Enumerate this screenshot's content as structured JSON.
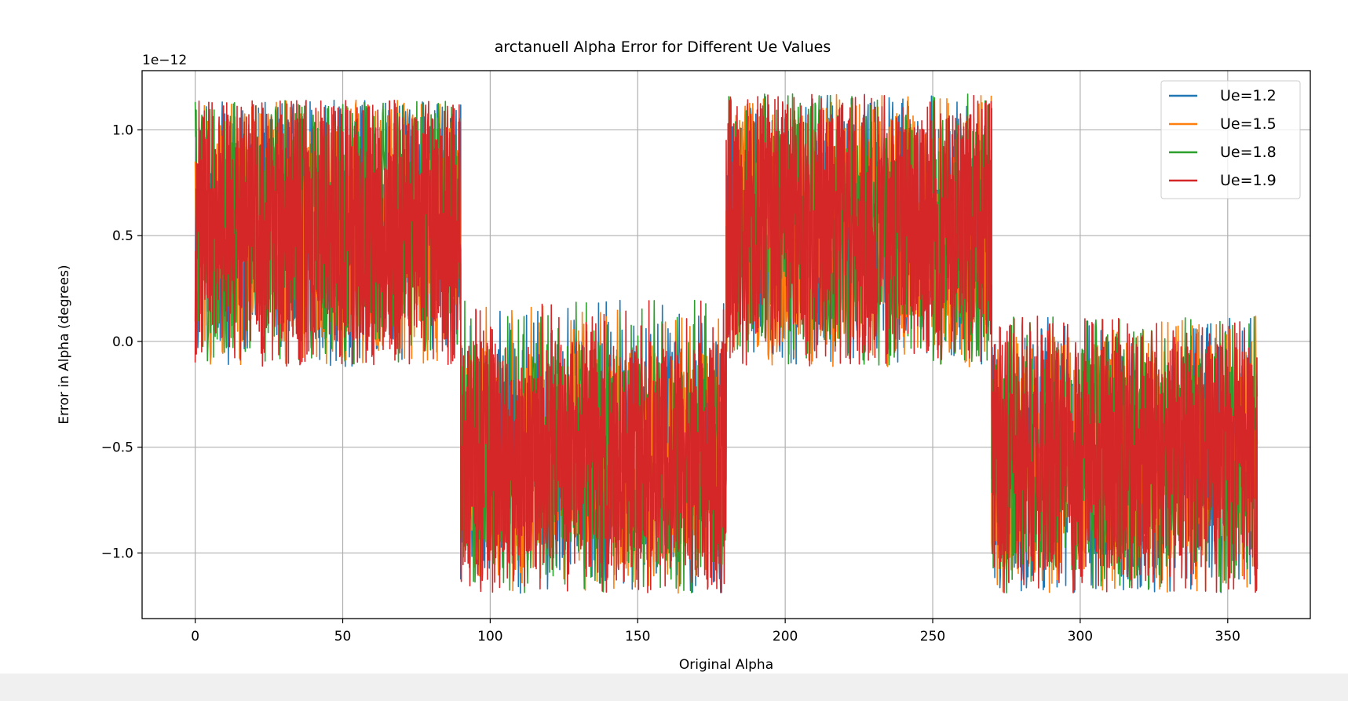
{
  "chart_data": {
    "type": "line",
    "title": "arctanuell Alpha Error for Different Ue Values",
    "xlabel": "Original Alpha",
    "ylabel": "Error in Alpha (degrees)",
    "y_offset_label": "1e−12",
    "y_scale": 1e-12,
    "xlim": [
      -18,
      378
    ],
    "ylim": [
      -1.31,
      1.28
    ],
    "x_ticks": [
      0,
      50,
      100,
      150,
      200,
      250,
      300,
      350
    ],
    "x_tick_labels": [
      "0",
      "50",
      "100",
      "150",
      "200",
      "250",
      "300",
      "350"
    ],
    "y_ticks": [
      -1.0,
      -0.5,
      0.0,
      0.5,
      1.0
    ],
    "y_tick_labels": [
      "−1.0",
      "−0.5",
      "0.0",
      "0.5",
      "1.0"
    ],
    "grid": true,
    "legend_position": "top-right",
    "x_range": [
      0,
      360
    ],
    "segments": [
      {
        "x": [
          0,
          90
        ],
        "band": [
          0.0,
          1.08
        ],
        "extremes": [
          -0.12,
          1.14
        ]
      },
      {
        "x": [
          90,
          180
        ],
        "band": [
          -1.08,
          0.0
        ],
        "extremes": [
          -1.19,
          0.2
        ]
      },
      {
        "x": [
          180,
          270
        ],
        "band": [
          0.0,
          1.08
        ],
        "extremes": [
          -0.12,
          1.17
        ]
      },
      {
        "x": [
          270,
          360
        ],
        "band": [
          -1.08,
          0.0
        ],
        "extremes": [
          -1.19,
          0.12
        ]
      }
    ],
    "series": [
      {
        "name": "Ue=1.2",
        "color": "#1f77b4"
      },
      {
        "name": "Ue=1.5",
        "color": "#ff7f0e"
      },
      {
        "name": "Ue=1.8",
        "color": "#2ca02c"
      },
      {
        "name": "Ue=1.9",
        "color": "#d62728"
      }
    ]
  }
}
